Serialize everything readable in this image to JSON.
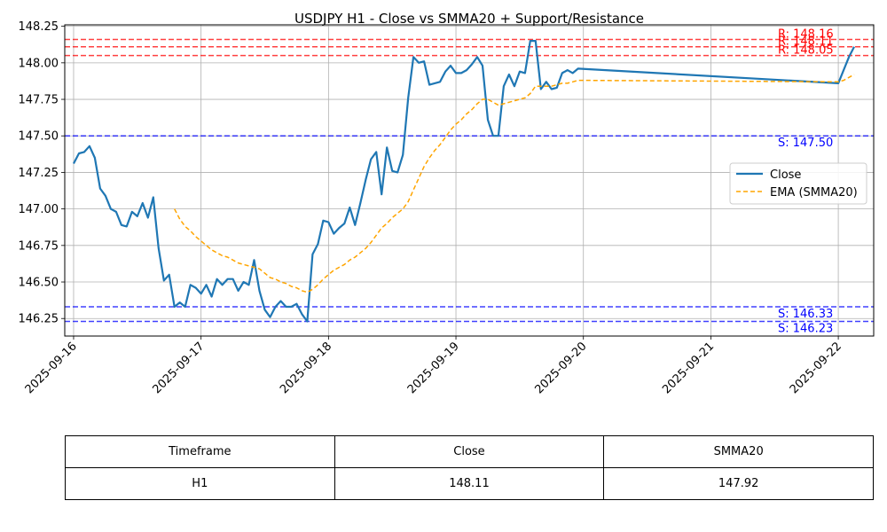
{
  "chart_data": {
    "type": "line",
    "title": "USDJPY H1 - Close vs SMMA20 + Support/Resistance",
    "xlabel": "",
    "ylabel": "",
    "grid": true,
    "legend_position": "right",
    "xlim": [
      "2025-09-15T22:20",
      "2025-09-22T06:40"
    ],
    "ylim": [
      146.13,
      148.26
    ],
    "x_ticks": [
      "2025-09-16",
      "2025-09-17",
      "2025-09-18",
      "2025-09-19",
      "2025-09-20",
      "2025-09-21",
      "2025-09-22"
    ],
    "y_ticks": [
      "146.25",
      "146.50",
      "146.75",
      "147.00",
      "147.25",
      "147.50",
      "147.75",
      "148.00",
      "148.25"
    ],
    "series": [
      {
        "name": "Close",
        "color": "#1f77b4",
        "style": "solid",
        "points": [
          [
            "2025-09-16T00:00",
            147.31
          ],
          [
            "2025-09-16T01:00",
            147.38
          ],
          [
            "2025-09-16T02:00",
            147.39
          ],
          [
            "2025-09-16T03:00",
            147.43
          ],
          [
            "2025-09-16T04:00",
            147.35
          ],
          [
            "2025-09-16T05:00",
            147.14
          ],
          [
            "2025-09-16T06:00",
            147.09
          ],
          [
            "2025-09-16T07:00",
            147.0
          ],
          [
            "2025-09-16T08:00",
            146.98
          ],
          [
            "2025-09-16T09:00",
            146.89
          ],
          [
            "2025-09-16T10:00",
            146.88
          ],
          [
            "2025-09-16T11:00",
            146.98
          ],
          [
            "2025-09-16T12:00",
            146.95
          ],
          [
            "2025-09-16T13:00",
            147.04
          ],
          [
            "2025-09-16T14:00",
            146.94
          ],
          [
            "2025-09-16T15:00",
            147.08
          ],
          [
            "2025-09-16T16:00",
            146.73
          ],
          [
            "2025-09-16T17:00",
            146.51
          ],
          [
            "2025-09-16T18:00",
            146.55
          ],
          [
            "2025-09-16T19:00",
            146.33
          ],
          [
            "2025-09-16T20:00",
            146.36
          ],
          [
            "2025-09-16T21:00",
            146.33
          ],
          [
            "2025-09-16T22:00",
            146.48
          ],
          [
            "2025-09-16T23:00",
            146.46
          ],
          [
            "2025-09-17T00:00",
            146.42
          ],
          [
            "2025-09-17T01:00",
            146.48
          ],
          [
            "2025-09-17T02:00",
            146.4
          ],
          [
            "2025-09-17T03:00",
            146.52
          ],
          [
            "2025-09-17T04:00",
            146.48
          ],
          [
            "2025-09-17T05:00",
            146.52
          ],
          [
            "2025-09-17T06:00",
            146.52
          ],
          [
            "2025-09-17T07:00",
            146.44
          ],
          [
            "2025-09-17T08:00",
            146.5
          ],
          [
            "2025-09-17T09:00",
            146.48
          ],
          [
            "2025-09-17T10:00",
            146.65
          ],
          [
            "2025-09-17T11:00",
            146.44
          ],
          [
            "2025-09-17T12:00",
            146.31
          ],
          [
            "2025-09-17T13:00",
            146.26
          ],
          [
            "2025-09-17T14:00",
            146.33
          ],
          [
            "2025-09-17T15:00",
            146.37
          ],
          [
            "2025-09-17T16:00",
            146.33
          ],
          [
            "2025-09-17T17:00",
            146.33
          ],
          [
            "2025-09-17T18:00",
            146.35
          ],
          [
            "2025-09-17T19:00",
            146.28
          ],
          [
            "2025-09-17T20:00",
            146.23
          ],
          [
            "2025-09-17T21:00",
            146.69
          ],
          [
            "2025-09-17T22:00",
            146.76
          ],
          [
            "2025-09-17T23:00",
            146.92
          ],
          [
            "2025-09-18T00:00",
            146.91
          ],
          [
            "2025-09-18T01:00",
            146.83
          ],
          [
            "2025-09-18T02:00",
            146.87
          ],
          [
            "2025-09-18T03:00",
            146.9
          ],
          [
            "2025-09-18T04:00",
            147.01
          ],
          [
            "2025-09-18T05:00",
            146.89
          ],
          [
            "2025-09-18T06:00",
            147.04
          ],
          [
            "2025-09-18T07:00",
            147.2
          ],
          [
            "2025-09-18T08:00",
            147.34
          ],
          [
            "2025-09-18T09:00",
            147.39
          ],
          [
            "2025-09-18T10:00",
            147.1
          ],
          [
            "2025-09-18T11:00",
            147.42
          ],
          [
            "2025-09-18T12:00",
            147.26
          ],
          [
            "2025-09-18T13:00",
            147.25
          ],
          [
            "2025-09-18T14:00",
            147.37
          ],
          [
            "2025-09-18T15:00",
            147.76
          ],
          [
            "2025-09-18T16:00",
            148.04
          ],
          [
            "2025-09-18T17:00",
            148.0
          ],
          [
            "2025-09-18T18:00",
            148.01
          ],
          [
            "2025-09-18T19:00",
            147.85
          ],
          [
            "2025-09-18T20:00",
            147.86
          ],
          [
            "2025-09-18T21:00",
            147.87
          ],
          [
            "2025-09-18T22:00",
            147.94
          ],
          [
            "2025-09-18T23:00",
            147.98
          ],
          [
            "2025-09-19T00:00",
            147.93
          ],
          [
            "2025-09-19T01:00",
            147.93
          ],
          [
            "2025-09-19T02:00",
            147.95
          ],
          [
            "2025-09-19T03:00",
            147.99
          ],
          [
            "2025-09-19T04:00",
            148.04
          ],
          [
            "2025-09-19T05:00",
            147.98
          ],
          [
            "2025-09-19T06:00",
            147.61
          ],
          [
            "2025-09-19T07:00",
            147.5
          ],
          [
            "2025-09-19T08:00",
            147.5
          ],
          [
            "2025-09-19T09:00",
            147.84
          ],
          [
            "2025-09-19T10:00",
            147.92
          ],
          [
            "2025-09-19T11:00",
            147.84
          ],
          [
            "2025-09-19T12:00",
            147.94
          ],
          [
            "2025-09-19T13:00",
            147.93
          ],
          [
            "2025-09-19T14:00",
            148.15
          ],
          [
            "2025-09-19T15:00",
            148.15
          ],
          [
            "2025-09-19T16:00",
            147.82
          ],
          [
            "2025-09-19T17:00",
            147.87
          ],
          [
            "2025-09-19T18:00",
            147.82
          ],
          [
            "2025-09-19T19:00",
            147.83
          ],
          [
            "2025-09-19T20:00",
            147.93
          ],
          [
            "2025-09-19T21:00",
            147.95
          ],
          [
            "2025-09-19T22:00",
            147.93
          ],
          [
            "2025-09-19T23:00",
            147.96
          ],
          [
            "2025-09-22T00:00",
            147.86
          ],
          [
            "2025-09-22T01:00",
            147.95
          ],
          [
            "2025-09-22T02:00",
            148.04
          ],
          [
            "2025-09-22T03:00",
            148.11
          ]
        ]
      },
      {
        "name": "EMA (SMMA20)",
        "color": "#ffa500",
        "style": "dashed",
        "points": [
          [
            "2025-09-16T19:00",
            147.0
          ],
          [
            "2025-09-16T20:00",
            146.93
          ],
          [
            "2025-09-16T21:00",
            146.88
          ],
          [
            "2025-09-16T22:00",
            146.85
          ],
          [
            "2025-09-16T23:00",
            146.81
          ],
          [
            "2025-09-17T00:00",
            146.78
          ],
          [
            "2025-09-17T01:00",
            146.75
          ],
          [
            "2025-09-17T02:00",
            146.72
          ],
          [
            "2025-09-17T03:00",
            146.7
          ],
          [
            "2025-09-17T04:00",
            146.68
          ],
          [
            "2025-09-17T05:00",
            146.67
          ],
          [
            "2025-09-17T06:00",
            146.65
          ],
          [
            "2025-09-17T07:00",
            146.63
          ],
          [
            "2025-09-17T08:00",
            146.62
          ],
          [
            "2025-09-17T09:00",
            146.61
          ],
          [
            "2025-09-17T10:00",
            146.6
          ],
          [
            "2025-09-17T11:00",
            146.59
          ],
          [
            "2025-09-17T12:00",
            146.56
          ],
          [
            "2025-09-17T13:00",
            146.53
          ],
          [
            "2025-09-17T14:00",
            146.52
          ],
          [
            "2025-09-17T15:00",
            146.5
          ],
          [
            "2025-09-17T16:00",
            146.49
          ],
          [
            "2025-09-17T17:00",
            146.47
          ],
          [
            "2025-09-17T18:00",
            146.46
          ],
          [
            "2025-09-17T19:00",
            146.44
          ],
          [
            "2025-09-17T20:00",
            146.43
          ],
          [
            "2025-09-17T21:00",
            146.45
          ],
          [
            "2025-09-17T22:00",
            146.48
          ],
          [
            "2025-09-17T23:00",
            146.52
          ],
          [
            "2025-09-18T00:00",
            146.55
          ],
          [
            "2025-09-18T01:00",
            146.58
          ],
          [
            "2025-09-18T02:00",
            146.6
          ],
          [
            "2025-09-18T03:00",
            146.62
          ],
          [
            "2025-09-18T04:00",
            146.65
          ],
          [
            "2025-09-18T05:00",
            146.67
          ],
          [
            "2025-09-18T06:00",
            146.7
          ],
          [
            "2025-09-18T07:00",
            146.73
          ],
          [
            "2025-09-18T08:00",
            146.77
          ],
          [
            "2025-09-18T09:00",
            146.82
          ],
          [
            "2025-09-18T10:00",
            146.87
          ],
          [
            "2025-09-18T11:00",
            146.9
          ],
          [
            "2025-09-18T12:00",
            146.94
          ],
          [
            "2025-09-18T13:00",
            146.97
          ],
          [
            "2025-09-18T14:00",
            147.0
          ],
          [
            "2025-09-18T15:00",
            147.05
          ],
          [
            "2025-09-18T16:00",
            147.13
          ],
          [
            "2025-09-18T17:00",
            147.21
          ],
          [
            "2025-09-18T18:00",
            147.29
          ],
          [
            "2025-09-18T19:00",
            147.35
          ],
          [
            "2025-09-18T20:00",
            147.4
          ],
          [
            "2025-09-18T21:00",
            147.44
          ],
          [
            "2025-09-18T22:00",
            147.49
          ],
          [
            "2025-09-18T23:00",
            147.54
          ],
          [
            "2025-09-19T00:00",
            147.58
          ],
          [
            "2025-09-19T01:00",
            147.61
          ],
          [
            "2025-09-19T02:00",
            147.65
          ],
          [
            "2025-09-19T03:00",
            147.68
          ],
          [
            "2025-09-19T04:00",
            147.72
          ],
          [
            "2025-09-19T05:00",
            147.75
          ],
          [
            "2025-09-19T06:00",
            147.75
          ],
          [
            "2025-09-19T07:00",
            147.73
          ],
          [
            "2025-09-19T08:00",
            147.71
          ],
          [
            "2025-09-19T09:00",
            147.72
          ],
          [
            "2025-09-19T10:00",
            147.73
          ],
          [
            "2025-09-19T11:00",
            147.74
          ],
          [
            "2025-09-19T12:00",
            147.75
          ],
          [
            "2025-09-19T13:00",
            147.76
          ],
          [
            "2025-09-19T14:00",
            147.79
          ],
          [
            "2025-09-19T15:00",
            147.84
          ],
          [
            "2025-09-19T16:00",
            147.84
          ],
          [
            "2025-09-19T17:00",
            147.84
          ],
          [
            "2025-09-19T18:00",
            147.84
          ],
          [
            "2025-09-19T19:00",
            147.85
          ],
          [
            "2025-09-19T20:00",
            147.86
          ],
          [
            "2025-09-19T21:00",
            147.86
          ],
          [
            "2025-09-19T22:00",
            147.87
          ],
          [
            "2025-09-19T23:00",
            147.88
          ],
          [
            "2025-09-22T00:00",
            147.87
          ],
          [
            "2025-09-22T01:00",
            147.88
          ],
          [
            "2025-09-22T02:00",
            147.9
          ],
          [
            "2025-09-22T03:00",
            147.92
          ]
        ]
      }
    ],
    "levels": [
      {
        "kind": "resistance",
        "label": "R: 148.16",
        "value": 148.16,
        "color": "#ff0000"
      },
      {
        "kind": "resistance",
        "label": "R: 148.11",
        "value": 148.11,
        "color": "#ff0000"
      },
      {
        "kind": "resistance",
        "label": "R: 148.05",
        "value": 148.05,
        "color": "#ff0000"
      },
      {
        "kind": "support",
        "label": "S: 147.50",
        "value": 147.5,
        "color": "#0000ff"
      },
      {
        "kind": "support",
        "label": "S: 146.33",
        "value": 146.33,
        "color": "#0000ff"
      },
      {
        "kind": "support",
        "label": "S: 146.23",
        "value": 146.23,
        "color": "#0000ff"
      }
    ]
  },
  "table": {
    "headers": [
      "Timeframe",
      "Close",
      "SMMA20"
    ],
    "rows": [
      [
        "H1",
        "148.11",
        "147.92"
      ]
    ]
  }
}
